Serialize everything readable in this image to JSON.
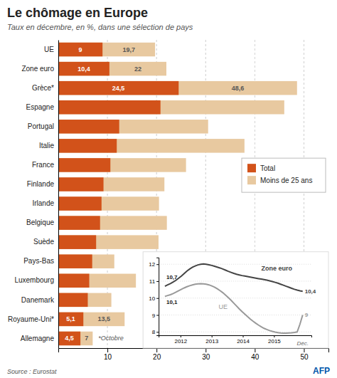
{
  "chart_data": [
    {
      "type": "bar",
      "orientation": "horizontal",
      "stacked": false,
      "title": "Le chômage en Europe",
      "subtitle": "Taux en décembre, en %, dans une sélection de pays",
      "source": "Source : Eurostat",
      "annotations": [
        "*Octobre",
        "AFP"
      ],
      "categories": [
        "UE",
        "Zone euro",
        "Grèce*",
        "Espagne",
        "Portugal",
        "Italie",
        "France",
        "Finlande",
        "Irlande",
        "Belgique",
        "Suède",
        "Pays-Bas",
        "Luxembourg",
        "Danemark",
        "Royaume-Uni*",
        "Allemagne"
      ],
      "series": [
        {
          "name": "Total",
          "color": "#D2521A",
          "values": [
            9.0,
            10.4,
            24.5,
            20.8,
            12.4,
            11.9,
            10.6,
            9.2,
            8.8,
            8.5,
            7.7,
            6.9,
            6.3,
            6.0,
            5.1,
            4.5
          ],
          "value_labels": [
            "9",
            "10,4",
            "24,5",
            null,
            null,
            null,
            null,
            null,
            null,
            null,
            null,
            null,
            null,
            null,
            "5,1",
            "4,5"
          ]
        },
        {
          "name": "Moins de 25 ans",
          "color": "#E8C9A0",
          "values": [
            19.7,
            22.0,
            48.6,
            46.0,
            30.5,
            37.9,
            26.0,
            21.6,
            20.5,
            22.1,
            20.4,
            11.4,
            15.8,
            10.8,
            13.5,
            7.0
          ],
          "value_labels": [
            "19,7",
            "22",
            "48,6",
            null,
            null,
            null,
            null,
            null,
            null,
            null,
            null,
            null,
            null,
            null,
            "13,5",
            "7"
          ]
        }
      ],
      "xlim": [
        0,
        55
      ],
      "xticks": [
        10,
        20,
        30,
        40,
        50
      ],
      "grid": true,
      "legend": "right"
    },
    {
      "type": "line",
      "x": [
        2011.5,
        2011.5884,
        2011.6768,
        2011.7652,
        2011.8536,
        2011.942,
        2012.0304,
        2012.1188,
        2012.2072,
        2012.2956,
        2012.384,
        2012.4724,
        2012.5608,
        2012.6492,
        2012.7376,
        2012.826,
        2012.9144,
        2013.0028,
        2013.0912,
        2013.1796,
        2013.268,
        2013.3564,
        2013.4448,
        2013.5332,
        2013.6216,
        2013.71,
        2013.7984,
        2013.8868,
        2013.9752,
        2014.0636,
        2014.152,
        2014.2404,
        2014.3288,
        2014.4172,
        2014.5056,
        2014.594,
        2014.6824,
        2014.7708,
        2014.8592,
        2014.9476,
        2015.036,
        2015.1244,
        2015.2128,
        2015.3012,
        2015.3896,
        2015.478,
        2015.5664,
        2015.6548,
        2015.7432,
        2015.8316,
        2015.92
      ],
      "series": [
        {
          "name": "Zone euro",
          "color": "#444444",
          "values": [
            10.7,
            10.78,
            10.86,
            10.95,
            11.05,
            11.18,
            11.3,
            11.45,
            11.6,
            11.72,
            11.82,
            11.9,
            11.96,
            12.0,
            12.02,
            12.0,
            11.97,
            11.93,
            11.88,
            11.83,
            11.78,
            11.72,
            11.65,
            11.58,
            11.52,
            11.46,
            11.41,
            11.37,
            11.33,
            11.3,
            11.27,
            11.24,
            11.21,
            11.18,
            11.15,
            11.12,
            11.09,
            11.06,
            11.02,
            10.98,
            10.93,
            10.88,
            10.82,
            10.76,
            10.7,
            10.64,
            10.58,
            10.52,
            10.47,
            10.43,
            10.4
          ],
          "value_labels": [
            "10,7",
            null,
            null,
            null,
            null,
            null,
            null,
            null,
            null,
            null,
            null,
            null,
            null,
            null,
            null,
            null,
            null,
            null,
            null,
            null,
            null,
            null,
            null,
            null,
            null,
            null,
            null,
            null,
            null,
            null,
            null,
            null,
            null,
            null,
            null,
            null,
            null,
            null,
            null,
            null,
            null,
            null,
            null,
            null,
            null,
            null,
            null,
            null,
            null,
            null,
            "10,4"
          ]
        },
        {
          "name": "UE",
          "color": "#999999",
          "values": [
            10.1,
            10.15,
            10.2,
            10.27,
            10.35,
            10.44,
            10.52,
            10.6,
            10.67,
            10.73,
            10.78,
            10.82,
            10.84,
            10.85,
            10.84,
            10.82,
            10.78,
            10.72,
            10.65,
            10.55,
            10.44,
            10.32,
            10.18,
            10.03,
            9.87,
            9.7,
            9.53,
            9.36,
            9.2,
            9.05,
            8.9,
            8.76,
            8.63,
            8.51,
            8.4,
            8.3,
            8.21,
            8.14,
            8.08,
            8.03,
            7.99,
            7.96,
            7.94,
            7.93,
            7.93,
            7.94,
            7.95,
            7.97,
            8.0,
            8.45,
            9.0
          ],
          "value_labels": [
            "10,1",
            null,
            null,
            null,
            null,
            null,
            null,
            null,
            null,
            null,
            null,
            null,
            null,
            null,
            null,
            null,
            null,
            null,
            null,
            null,
            null,
            null,
            null,
            null,
            null,
            null,
            null,
            null,
            null,
            null,
            null,
            null,
            null,
            null,
            null,
            null,
            null,
            null,
            null,
            null,
            null,
            null,
            null,
            null,
            null,
            null,
            null,
            null,
            null,
            null,
            "9"
          ]
        }
      ],
      "xlim": [
        2011.3,
        2016.2
      ],
      "xticks": [
        2012,
        2013,
        2014,
        2015
      ],
      "ylim": [
        7.8,
        12.4
      ],
      "yticks": [
        8,
        9,
        10,
        11,
        12
      ],
      "grid": true,
      "annotations": [
        "Déc."
      ]
    }
  ]
}
